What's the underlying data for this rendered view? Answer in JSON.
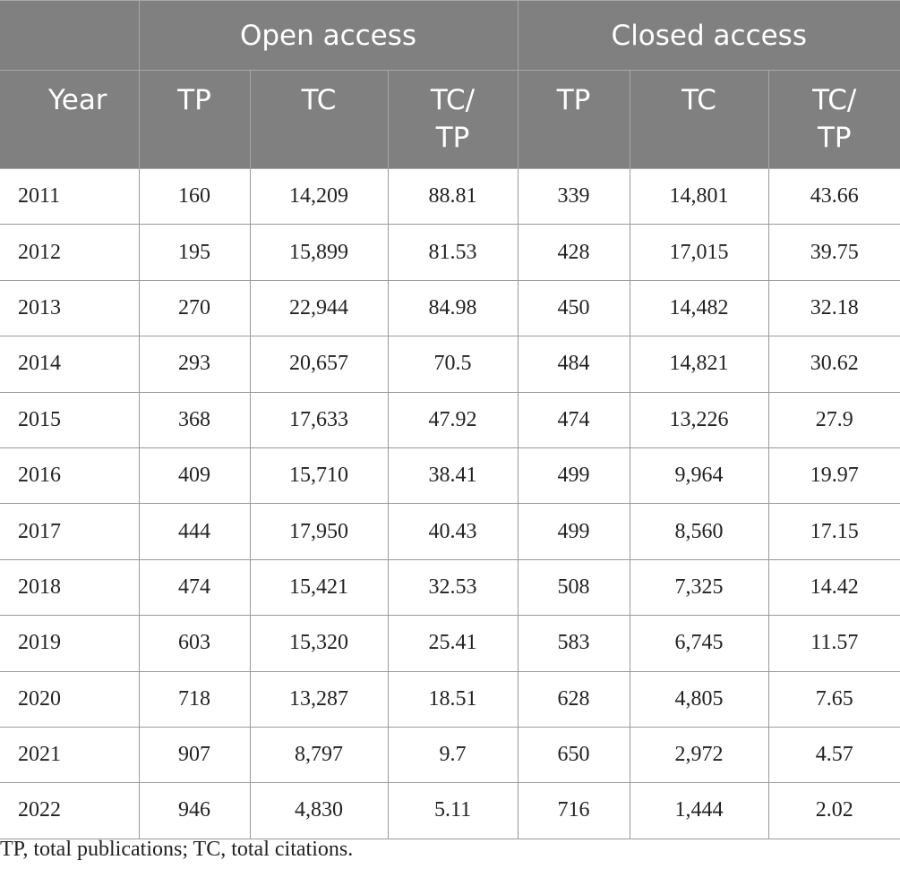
{
  "table": {
    "group_headers": [
      "Open access",
      "Closed access"
    ],
    "headers": [
      "Year",
      "TP",
      "TC",
      "TC/\nTP",
      "TP",
      "TC",
      "TC/\nTP"
    ],
    "rows": [
      [
        "2011",
        "160",
        "14,209",
        "88.81",
        "339",
        "14,801",
        "43.66"
      ],
      [
        "2012",
        "195",
        "15,899",
        "81.53",
        "428",
        "17,015",
        "39.75"
      ],
      [
        "2013",
        "270",
        "22,944",
        "84.98",
        "450",
        "14,482",
        "32.18"
      ],
      [
        "2014",
        "293",
        "20,657",
        "70.5",
        "484",
        "14,821",
        "30.62"
      ],
      [
        "2015",
        "368",
        "17,633",
        "47.92",
        "474",
        "13,226",
        "27.9"
      ],
      [
        "2016",
        "409",
        "15,710",
        "38.41",
        "499",
        "9,964",
        "19.97"
      ],
      [
        "2017",
        "444",
        "17,950",
        "40.43",
        "499",
        "8,560",
        "17.15"
      ],
      [
        "2018",
        "474",
        "15,421",
        "32.53",
        "508",
        "7,325",
        "14.42"
      ],
      [
        "2019",
        "603",
        "15,320",
        "25.41",
        "583",
        "6,745",
        "11.57"
      ],
      [
        "2020",
        "718",
        "13,287",
        "18.51",
        "628",
        "4,805",
        "7.65"
      ],
      [
        "2021",
        "907",
        "8,797",
        "9.7",
        "650",
        "2,972",
        "4.57"
      ],
      [
        "2022",
        "946",
        "4,830",
        "5.11",
        "716",
        "1,444",
        "2.02"
      ]
    ]
  },
  "footnote": "TP, total publications; TC, total citations."
}
